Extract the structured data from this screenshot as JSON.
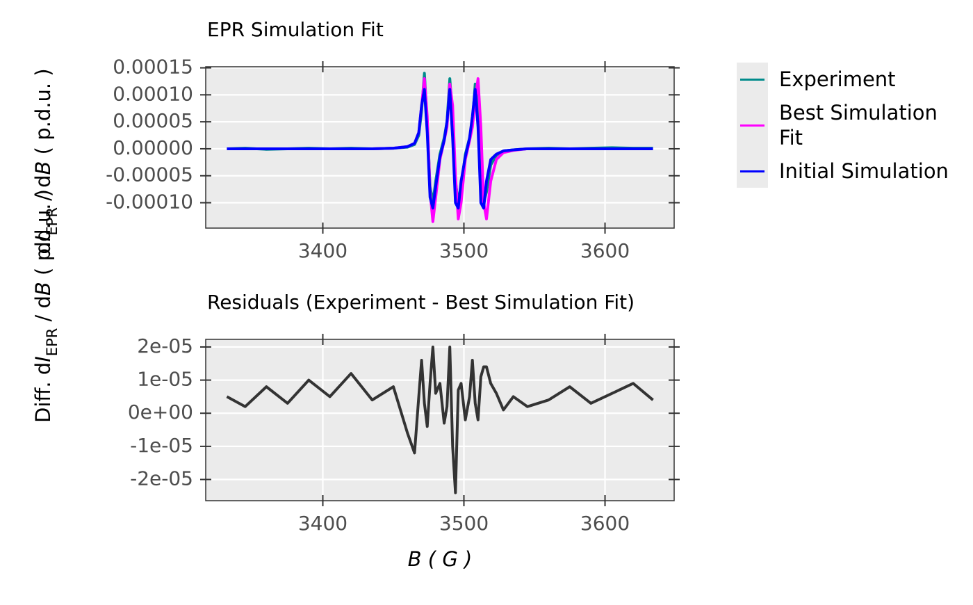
{
  "chart_data": [
    {
      "type": "line",
      "title": "EPR Simulation Fit",
      "x": [
        3332,
        3345,
        3360,
        3375,
        3390,
        3405,
        3420,
        3435,
        3450,
        3460,
        3465,
        3468,
        3470,
        3472,
        3474,
        3476,
        3478,
        3480,
        3483,
        3486,
        3488,
        3490,
        3492,
        3494,
        3496,
        3498,
        3501,
        3504,
        3506,
        3508,
        3510,
        3512,
        3514,
        3516,
        3519,
        3523,
        3528,
        3535,
        3545,
        3560,
        3575,
        3590,
        3605,
        3620,
        3634
      ],
      "series": [
        {
          "name": "Experiment",
          "color": "#008b8b",
          "values": [
            0,
            1e-06,
            -1e-06,
            0,
            1e-06,
            0,
            1e-06,
            0,
            1e-06,
            3e-06,
            8e-06,
            2.5e-05,
            7e-05,
            0.00014,
            5e-05,
            -7e-05,
            -0.0001,
            -6e-05,
            -1e-05,
            2e-05,
            5e-05,
            0.00013,
            6e-05,
            -6e-05,
            -0.0001,
            -7e-05,
            -1e-05,
            2e-05,
            5e-05,
            0.00012,
            0.0001,
            -3e-05,
            -0.0001,
            -8e-05,
            -3e-05,
            -1.2e-05,
            -4e-06,
            -2e-06,
            0,
            1e-06,
            0,
            1e-06,
            2e-06,
            1e-06,
            1e-06
          ]
        },
        {
          "name": "Best Simulation Fit",
          "color": "#ff00ff",
          "values": [
            0,
            0,
            0,
            0,
            0,
            0,
            0,
            0,
            1e-06,
            4e-06,
            1e-05,
            3e-05,
            8e-05,
            0.00013,
            6e-05,
            -8e-05,
            -0.000135,
            -9e-05,
            -2e-05,
            1.5e-05,
            4e-05,
            0.00012,
            8e-05,
            -5e-05,
            -0.00013,
            -0.0001,
            -2e-05,
            1.5e-05,
            4e-05,
            9e-05,
            0.00013,
            4e-05,
            -0.0001,
            -0.00013,
            -6e-05,
            -2e-05,
            -7e-06,
            -3e-06,
            0,
            0,
            0,
            0,
            0,
            0,
            0
          ]
        },
        {
          "name": "Initial Simulation",
          "color": "#0000ff",
          "values": [
            0,
            0,
            0,
            0,
            0,
            0,
            0,
            0,
            1e-06,
            4e-06,
            1e-05,
            3e-05,
            8e-05,
            0.00011,
            3e-05,
            -9e-05,
            -0.00011,
            -7e-05,
            -1.5e-05,
            1.5e-05,
            5e-05,
            0.00011,
            2e-05,
            -0.0001,
            -0.00011,
            -6e-05,
            -1.5e-05,
            2e-05,
            6e-05,
            0.00011,
            4e-05,
            -0.0001,
            -0.00011,
            -6e-05,
            -2e-05,
            -1e-05,
            -4e-06,
            -2e-06,
            0,
            0,
            0,
            0,
            0,
            0,
            0
          ]
        }
      ],
      "xlim": [
        3317,
        3649
      ],
      "ylim": [
        -0.000147,
        0.000152
      ],
      "xticks": [
        3400,
        3500,
        3600
      ],
      "yticks": [
        {
          "value": 0.00015,
          "label": "0.00015"
        },
        {
          "value": 0.0001,
          "label": "0.00010"
        },
        {
          "value": 5e-05,
          "label": "0.00005"
        },
        {
          "value": 0,
          "label": "0.00000"
        },
        {
          "value": -5e-05,
          "label": "-0.00005"
        },
        {
          "value": -0.0001,
          "label": "-0.00010"
        }
      ],
      "y_label": [
        "d",
        "I",
        "EPR",
        " / d",
        "B",
        "  ( p.d.u. )"
      ],
      "grid": true,
      "legend": "right"
    },
    {
      "type": "line",
      "title": "Residuals (Experiment - Best Simulation Fit)",
      "x": [
        3332,
        3345,
        3360,
        3375,
        3390,
        3405,
        3420,
        3435,
        3450,
        3460,
        3465,
        3468,
        3470,
        3472,
        3474,
        3476,
        3478,
        3480,
        3483,
        3486,
        3488,
        3490,
        3492,
        3494,
        3496,
        3498,
        3501,
        3504,
        3506,
        3508,
        3510,
        3512,
        3514,
        3516,
        3519,
        3523,
        3528,
        3535,
        3545,
        3560,
        3575,
        3590,
        3605,
        3620,
        3634
      ],
      "series": [
        {
          "color": "#333333",
          "values": [
            5e-06,
            2e-06,
            8e-06,
            3e-06,
            1e-05,
            5e-06,
            1.2e-05,
            4e-06,
            8e-06,
            -6e-06,
            -1.2e-05,
            5e-06,
            1.6e-05,
            3e-06,
            -4e-06,
            9e-06,
            2e-05,
            6e-06,
            9e-06,
            -3e-06,
            2e-06,
            2e-05,
            -1e-05,
            -2.4e-05,
            7e-06,
            9e-06,
            -2e-06,
            5e-06,
            1.6e-05,
            3e-06,
            -2e-06,
            1.1e-05,
            1.4e-05,
            1.4e-05,
            9e-06,
            6e-06,
            1e-06,
            5e-06,
            2e-06,
            4e-06,
            8e-06,
            3e-06,
            6e-06,
            9e-06,
            4e-06
          ]
        }
      ],
      "xlim": [
        3317,
        3649
      ],
      "ylim": [
        -2.64e-05,
        2.23e-05
      ],
      "xticks": [
        3400,
        3500,
        3600
      ],
      "yticks": [
        {
          "value": 2e-05,
          "label": "2e-05"
        },
        {
          "value": 1e-05,
          "label": "1e-05"
        },
        {
          "value": 0,
          "label": "0e+00"
        },
        {
          "value": -1e-05,
          "label": "-1e-05"
        },
        {
          "value": -2e-05,
          "label": "-2e-05"
        }
      ],
      "y_label": [
        "Diff.  d",
        "I",
        "EPR",
        "  /  d",
        "B",
        "  ( p.d.u. )"
      ],
      "x_label": [
        "B",
        "  ( G )"
      ],
      "grid": true
    }
  ]
}
